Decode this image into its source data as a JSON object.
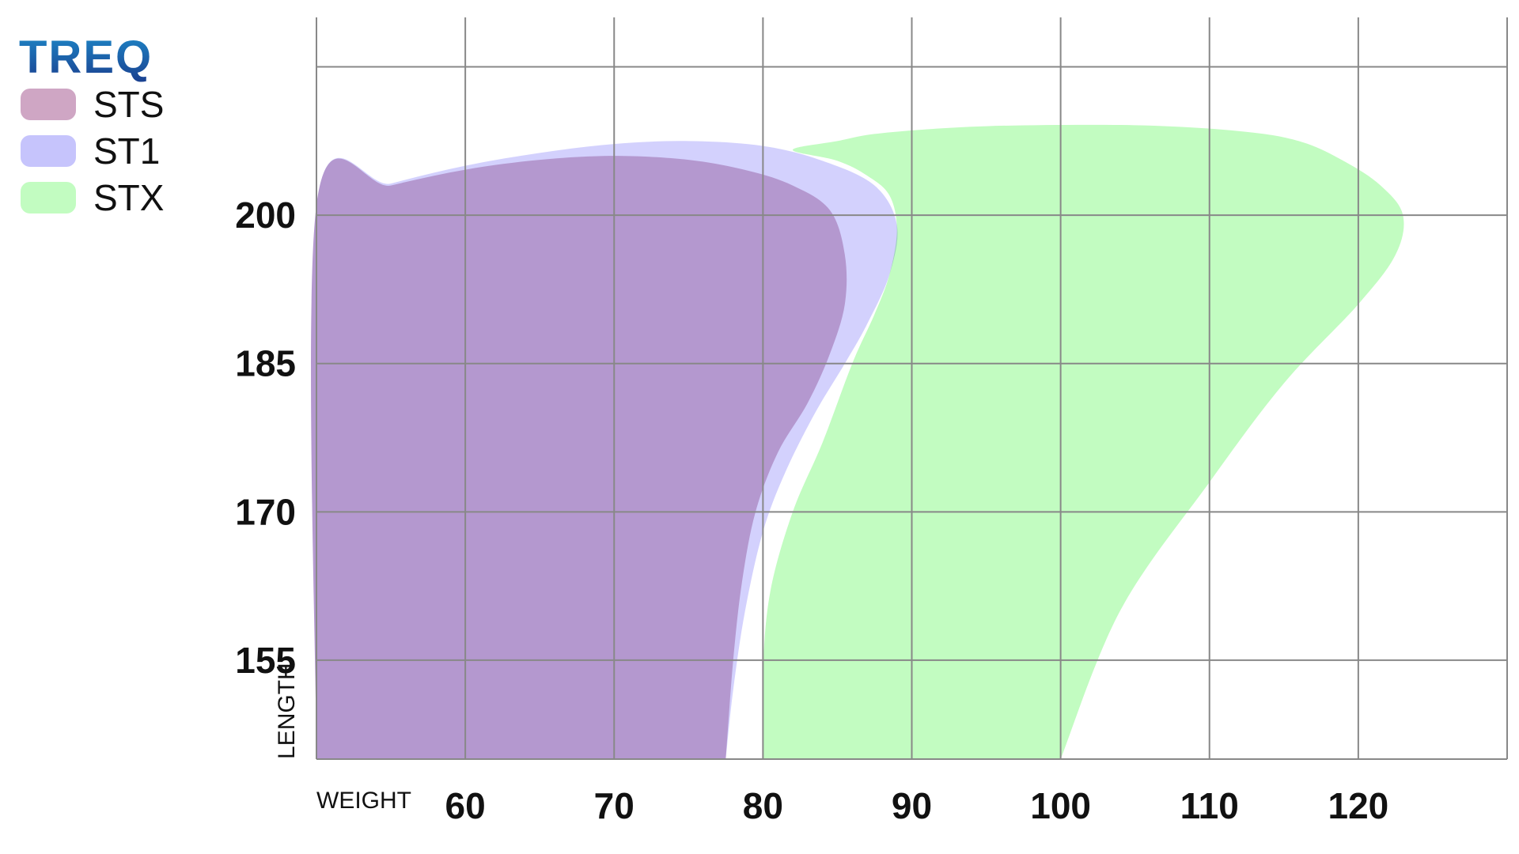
{
  "logo": {
    "text": "TREQ",
    "colors": [
      "#1e88c8",
      "#1a3f8f"
    ]
  },
  "chart_data": {
    "type": "area",
    "xlabel": "WEIGHT",
    "ylabel": "LENGTH",
    "xlim": [
      50,
      130
    ],
    "ylim": [
      145,
      220
    ],
    "x_ticks": [
      60,
      70,
      80,
      90,
      100,
      110,
      120
    ],
    "y_ticks": [
      155,
      170,
      185,
      200
    ],
    "x_gridlines": [
      60,
      70,
      80,
      90,
      100,
      110,
      120,
      130
    ],
    "y_gridlines": [
      155,
      170,
      185,
      200,
      215
    ],
    "grid": true,
    "legend_position": "top-left",
    "series": [
      {
        "name": "STX",
        "color": "#c2fcc1",
        "outline": [
          [
            80,
            145
          ],
          [
            80,
            154
          ],
          [
            80.5,
            162
          ],
          [
            82,
            170
          ],
          [
            84,
            177
          ],
          [
            86,
            185
          ],
          [
            87.5,
            190
          ],
          [
            88.5,
            194
          ],
          [
            89,
            198.5
          ],
          [
            88.5,
            202
          ],
          [
            87,
            204
          ],
          [
            85,
            205.5
          ],
          [
            82,
            206.6
          ],
          [
            85,
            207.5
          ],
          [
            88,
            208.3
          ],
          [
            95,
            209
          ],
          [
            105,
            209.1
          ],
          [
            112,
            208.5
          ],
          [
            116,
            207.5
          ],
          [
            119,
            205.5
          ],
          [
            121.5,
            203
          ],
          [
            123,
            200
          ],
          [
            122.5,
            196
          ],
          [
            120,
            191
          ],
          [
            115,
            183
          ],
          [
            110,
            173
          ],
          [
            104,
            160
          ],
          [
            100,
            145
          ]
        ]
      },
      {
        "name": "ST1",
        "color": "#c6c4fc",
        "outline": [
          [
            50,
            145
          ],
          [
            50,
            201
          ],
          [
            55,
            203.2
          ],
          [
            60,
            205
          ],
          [
            65,
            206.3
          ],
          [
            70,
            207.2
          ],
          [
            75,
            207.5
          ],
          [
            80,
            207.0
          ],
          [
            84,
            205.5
          ],
          [
            87.5,
            203
          ],
          [
            89,
            199
          ],
          [
            88.5,
            194
          ],
          [
            87,
            189
          ],
          [
            85.5,
            185
          ],
          [
            83.5,
            180
          ],
          [
            81.5,
            174
          ],
          [
            80,
            168
          ],
          [
            78.8,
            160
          ],
          [
            78,
            152
          ],
          [
            77.5,
            145
          ]
        ]
      },
      {
        "name": "STS",
        "color": "#cfa6c4",
        "outline": [
          [
            50,
            145
          ],
          [
            50,
            201
          ],
          [
            55,
            203.0
          ],
          [
            60,
            204.6
          ],
          [
            65,
            205.6
          ],
          [
            70,
            206.0
          ],
          [
            75,
            205.6
          ],
          [
            79,
            204.5
          ],
          [
            82,
            203
          ],
          [
            84.5,
            200.5
          ],
          [
            85.5,
            196
          ],
          [
            85.5,
            191
          ],
          [
            84.5,
            186
          ],
          [
            83,
            181
          ],
          [
            81,
            176
          ],
          [
            79.5,
            170
          ],
          [
            78.6,
            163
          ],
          [
            78,
            155
          ],
          [
            77.5,
            145
          ]
        ]
      }
    ]
  }
}
